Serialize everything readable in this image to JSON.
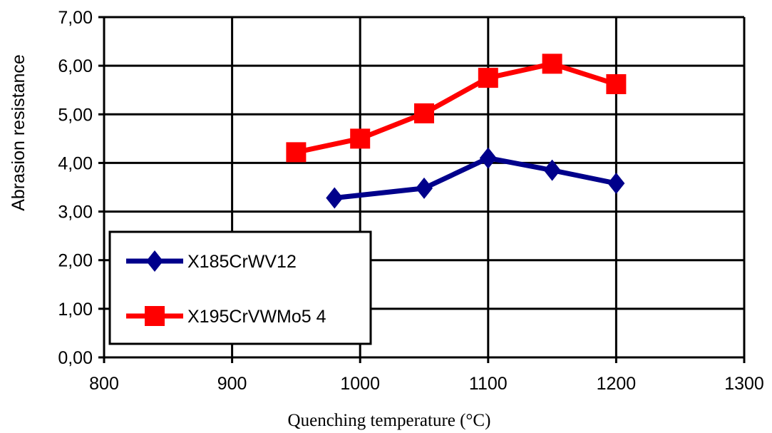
{
  "chart_data": {
    "type": "line",
    "xlabel": "Quenching temperature (°C)",
    "ylabel": "Abrasion resistance",
    "xlim": [
      800,
      1300
    ],
    "ylim": [
      0,
      7
    ],
    "x_ticks": [
      800,
      900,
      1000,
      1100,
      1200,
      1300
    ],
    "x_tick_labels": [
      "800",
      "900",
      "1000",
      "1100",
      "1200",
      "1300"
    ],
    "y_ticks": [
      0,
      1,
      2,
      3,
      4,
      5,
      6,
      7
    ],
    "y_tick_labels": [
      "0,00",
      "1,00",
      "2,00",
      "3,00",
      "4,00",
      "5,00",
      "6,00",
      "7,00"
    ],
    "grid": true,
    "legend_position": "bottom-left",
    "series": [
      {
        "name": "X185CrWV12",
        "color": "#00008b",
        "marker": "diamond",
        "points": [
          {
            "x": 980,
            "y": 3.28
          },
          {
            "x": 1050,
            "y": 3.48
          },
          {
            "x": 1100,
            "y": 4.1
          },
          {
            "x": 1150,
            "y": 3.85
          },
          {
            "x": 1200,
            "y": 3.58
          }
        ]
      },
      {
        "name": "X195CrVWMo5 4",
        "color": "#ff0000",
        "marker": "square",
        "points": [
          {
            "x": 950,
            "y": 4.22
          },
          {
            "x": 1000,
            "y": 4.5
          },
          {
            "x": 1050,
            "y": 5.02
          },
          {
            "x": 1100,
            "y": 5.75
          },
          {
            "x": 1150,
            "y": 6.04
          },
          {
            "x": 1200,
            "y": 5.62
          }
        ]
      }
    ]
  }
}
